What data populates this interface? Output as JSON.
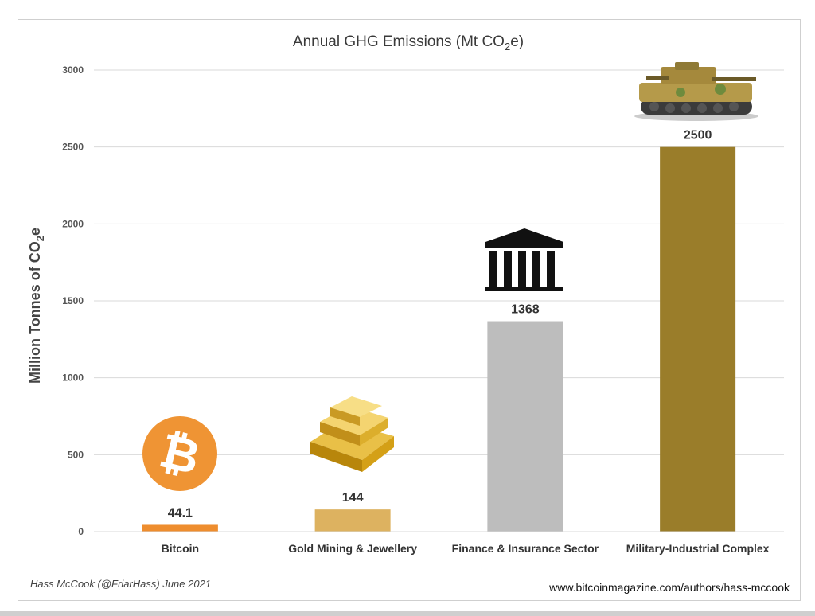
{
  "chart_data": {
    "type": "bar",
    "title": "Annual GHG Emissions (Mt CO2e)",
    "title_parts": {
      "pre": "Annual GHG Emissions (Mt CO",
      "sub": "2",
      "post": "e)"
    },
    "ylabel_parts": {
      "pre": "Million Tonnes of CO",
      "sub": "2",
      "post": "e"
    },
    "categories": [
      "Bitcoin",
      "Gold Mining & Jewellery",
      "Finance & Insurance Sector",
      "Military-Industrial Complex"
    ],
    "values": [
      44.1,
      144,
      1368,
      2500
    ],
    "value_labels": [
      "44.1",
      "144",
      "1368",
      "2500"
    ],
    "colors": [
      "#ee8d2e",
      "#ddb260",
      "#bdbdbd",
      "#9a7d2a"
    ],
    "ylim": [
      0,
      3000
    ],
    "yticks": [
      0,
      500,
      1000,
      1500,
      2000,
      2500,
      3000
    ],
    "grid": true,
    "icons": [
      "bitcoin-logo-icon",
      "gold-bars-icon",
      "bank-building-icon",
      "tank-icon"
    ]
  },
  "footer": {
    "credit": "Hass McCook (@FriarHass)  June 2021",
    "url": "www.bitcoinmagazine.com/authors/hass-mccook"
  }
}
